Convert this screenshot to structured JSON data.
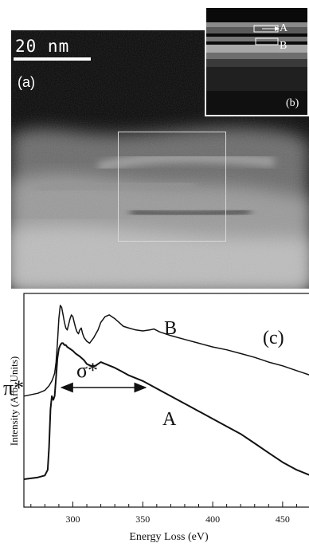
{
  "figure": {
    "scale_bar_label": "20 nm",
    "panel_a_label": "(a)",
    "inset": {
      "panel_label": "(b)",
      "marker_a": "A",
      "marker_b": "B"
    },
    "panel_c_label": "(c)",
    "pi_star_label": "π*",
    "sigma_star_label": "σ*"
  },
  "chart_data": {
    "type": "line",
    "xlabel": "Energy Loss (eV)",
    "ylabel": "Intensity (Arb. Units)",
    "xlim": [
      265,
      470
    ],
    "xticks": [
      300,
      350,
      400,
      450
    ],
    "series": [
      {
        "name": "B",
        "x": [
          265,
          275,
          280,
          283,
          285,
          286,
          287,
          288,
          289,
          290,
          291,
          292,
          293,
          294,
          295,
          296,
          297,
          298,
          299,
          300,
          301,
          302,
          303,
          304,
          305,
          306,
          307,
          308,
          310,
          312,
          315,
          318,
          320,
          323,
          326,
          328,
          330,
          333,
          336,
          340,
          345,
          350,
          355,
          358,
          362,
          366,
          370,
          380,
          390,
          400,
          410,
          420,
          430,
          440,
          450,
          460,
          470
        ],
        "y": [
          0.52,
          0.535,
          0.55,
          0.575,
          0.6,
          0.62,
          0.64,
          0.7,
          0.8,
          0.93,
          1.0,
          0.99,
          0.95,
          0.91,
          0.88,
          0.87,
          0.9,
          0.93,
          0.95,
          0.94,
          0.91,
          0.88,
          0.86,
          0.85,
          0.87,
          0.88,
          0.85,
          0.83,
          0.81,
          0.8,
          0.83,
          0.87,
          0.91,
          0.94,
          0.95,
          0.94,
          0.93,
          0.91,
          0.89,
          0.88,
          0.87,
          0.865,
          0.87,
          0.875,
          0.86,
          0.85,
          0.84,
          0.82,
          0.8,
          0.78,
          0.765,
          0.745,
          0.725,
          0.7,
          0.68,
          0.655,
          0.63
        ]
      },
      {
        "name": "A",
        "x": [
          265,
          275,
          280,
          282,
          283,
          284,
          285,
          286,
          287,
          288,
          289,
          290,
          291,
          292,
          293,
          294,
          295,
          296,
          298,
          300,
          302,
          305,
          308,
          310,
          313,
          316,
          320,
          325,
          330,
          335,
          340,
          350,
          360,
          370,
          380,
          390,
          400,
          410,
          420,
          430,
          440,
          450,
          460,
          470
        ],
        "y": [
          0.08,
          0.09,
          0.1,
          0.13,
          0.25,
          0.45,
          0.52,
          0.5,
          0.52,
          0.62,
          0.72,
          0.77,
          0.79,
          0.8,
          0.8,
          0.79,
          0.79,
          0.78,
          0.77,
          0.76,
          0.745,
          0.73,
          0.71,
          0.69,
          0.68,
          0.68,
          0.7,
          0.685,
          0.67,
          0.65,
          0.63,
          0.6,
          0.56,
          0.52,
          0.48,
          0.44,
          0.4,
          0.36,
          0.32,
          0.27,
          0.22,
          0.17,
          0.13,
          0.1
        ]
      }
    ],
    "annotations": [
      {
        "text": "π*",
        "energy": 284
      },
      {
        "text": "σ*",
        "arrow_from": 292,
        "arrow_to": 352
      }
    ]
  }
}
